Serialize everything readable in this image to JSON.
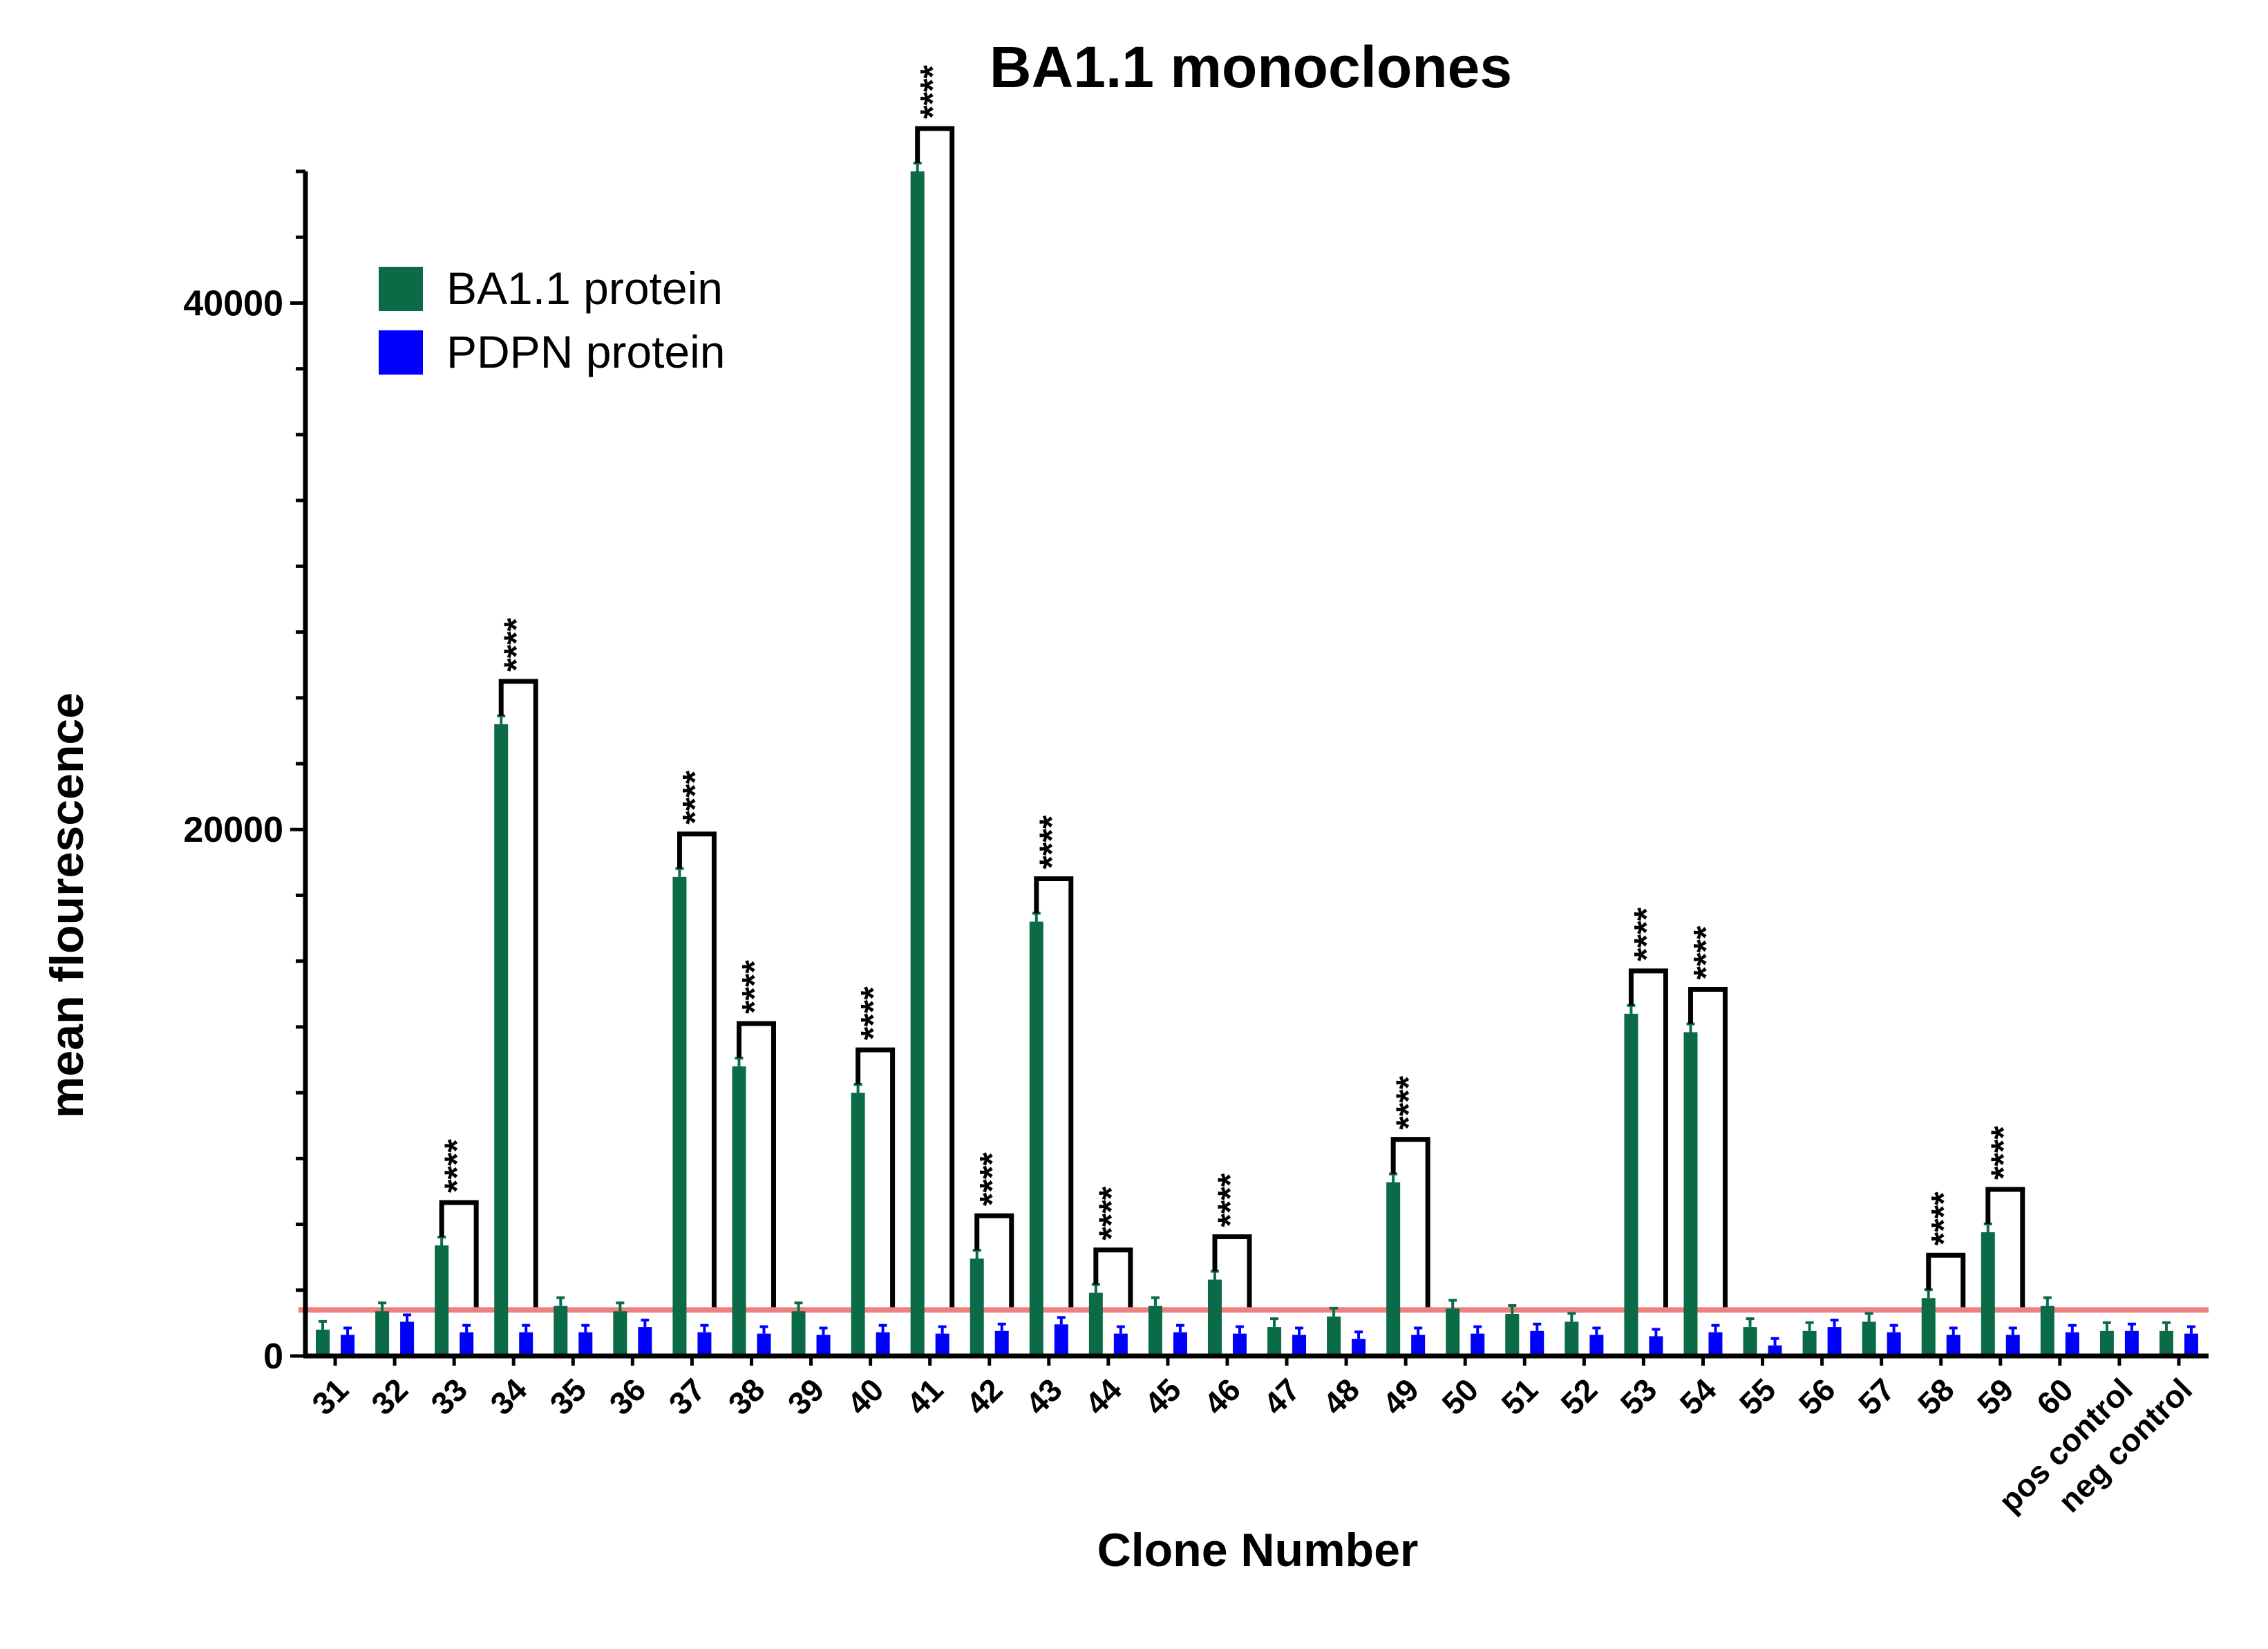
{
  "chart_data": {
    "type": "bar",
    "title": "BA1.1 monoclones",
    "xlabel": "Clone Number",
    "ylabel": "mean flourescence",
    "ylim": [
      0,
      45000
    ],
    "yticks": [
      0,
      20000,
      40000
    ],
    "ytick_labels": [
      "0",
      "20000",
      "40000"
    ],
    "threshold_line": {
      "value": 1750,
      "color": "#f08080"
    },
    "legend_position": "top-left",
    "categories": [
      "31",
      "32",
      "33",
      "34",
      "35",
      "36",
      "37",
      "38",
      "39",
      "40",
      "41",
      "42",
      "43",
      "44",
      "45",
      "46",
      "47",
      "48",
      "49",
      "50",
      "51",
      "52",
      "53",
      "54",
      "55",
      "56",
      "57",
      "58",
      "59",
      "60",
      "pos control",
      "neg control"
    ],
    "series": [
      {
        "name": "BA1.1 protein",
        "color": "#0b6b47",
        "values": [
          1000,
          1700,
          4200,
          24000,
          1900,
          1700,
          18200,
          11000,
          1700,
          10000,
          45000,
          3700,
          16500,
          2400,
          1900,
          2900,
          1100,
          1500,
          6600,
          1800,
          1600,
          1300,
          13000,
          12300,
          1100,
          950,
          1300,
          2200,
          4700,
          1900,
          950,
          950
        ]
      },
      {
        "name": "PDPN protein",
        "color": "#0000ff",
        "values": [
          800,
          1300,
          900,
          900,
          900,
          1100,
          900,
          850,
          800,
          900,
          850,
          950,
          1200,
          850,
          900,
          850,
          800,
          650,
          800,
          850,
          950,
          800,
          750,
          900,
          400,
          1100,
          900,
          800,
          800,
          900,
          950,
          850
        ]
      }
    ],
    "significance": [
      {
        "category": "33",
        "label": "****"
      },
      {
        "category": "34",
        "label": "****"
      },
      {
        "category": "37",
        "label": "****"
      },
      {
        "category": "38",
        "label": "****"
      },
      {
        "category": "40",
        "label": "****"
      },
      {
        "category": "41",
        "label": "****"
      },
      {
        "category": "42",
        "label": "****"
      },
      {
        "category": "43",
        "label": "****"
      },
      {
        "category": "44",
        "label": "****"
      },
      {
        "category": "46",
        "label": "****"
      },
      {
        "category": "49",
        "label": "****"
      },
      {
        "category": "53",
        "label": "****"
      },
      {
        "category": "54",
        "label": "****"
      },
      {
        "category": "58",
        "label": "****"
      },
      {
        "category": "59",
        "label": "****"
      }
    ]
  }
}
